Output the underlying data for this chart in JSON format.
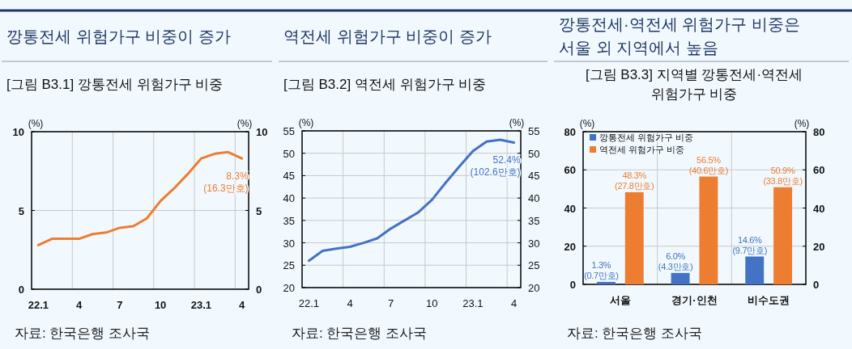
{
  "chart_data": [
    {
      "type": "line",
      "title": "깡통전세 위험가구 비중이 증가",
      "subtitle": "[그림 B3.1] 깡통전세 위험가구 비중",
      "ylabel": "(%)",
      "y2label": "(%)",
      "categories": [
        "22.1",
        null,
        null,
        "4",
        null,
        null,
        "7",
        null,
        null,
        "10",
        null,
        null,
        "23.1",
        null,
        null,
        "4"
      ],
      "series": [
        {
          "color": "#ed7d31",
          "values": [
            2.8,
            3.2,
            3.2,
            3.2,
            3.5,
            3.6,
            3.9,
            4.0,
            4.5,
            5.6,
            6.4,
            7.3,
            8.3,
            8.6,
            8.7,
            8.3
          ],
          "value_labels": [
            null,
            null,
            null,
            null,
            null,
            null,
            null,
            null,
            null,
            null,
            null,
            null,
            null,
            null,
            null,
            "8.3%\n(16.3만호)"
          ]
        }
      ],
      "ylim": [
        0,
        10
      ],
      "yticks": [
        0,
        5,
        10
      ],
      "y2lim": [
        0,
        10
      ],
      "y2ticks": [
        0,
        5,
        10
      ],
      "grid": true,
      "annotations": [
        "자료: 한국은행 조사국"
      ]
    },
    {
      "type": "line",
      "title": "역전세 위험가구 비중이 증가",
      "subtitle": "[그림 B3.2] 역전세 위험가구 비중",
      "ylabel": "(%)",
      "y2label": "(%)",
      "categories": [
        "22.1",
        null,
        null,
        "4",
        null,
        null,
        "7",
        null,
        null,
        "10",
        null,
        null,
        "23.1",
        null,
        null,
        "4"
      ],
      "series": [
        {
          "color": "#4472c4",
          "values": [
            26.0,
            28.2,
            28.7,
            29.1,
            30.0,
            31.0,
            33.2,
            35.0,
            36.8,
            39.6,
            43.4,
            47.0,
            50.5,
            52.6,
            53.0,
            52.4
          ],
          "value_labels": [
            null,
            null,
            null,
            null,
            null,
            null,
            null,
            null,
            null,
            null,
            null,
            null,
            null,
            null,
            null,
            "52.4%\n(102.6만호)"
          ]
        }
      ],
      "ylim": [
        20,
        55
      ],
      "yticks": [
        20,
        25,
        30,
        35,
        40,
        45,
        50,
        55
      ],
      "y2lim": [
        20,
        55
      ],
      "y2ticks": [
        20,
        25,
        30,
        35,
        40,
        45,
        50,
        55
      ],
      "grid": true,
      "annotations": [
        "자료: 한국은행 조사국"
      ]
    },
    {
      "type": "bar",
      "title": "깡통전세·역전세 위험가구 비중은\n서울 외 지역에서 높음",
      "subtitle": "[그림 B3.3] 지역별 깡통전세·역전세\n위험가구 비중",
      "ylabel": "(%)",
      "y2label": "(%)",
      "categories": [
        "서울",
        "경기·인천",
        "비수도권"
      ],
      "series": [
        {
          "name": "깡통전세 위험가구 비중",
          "color": "#4472c4",
          "values": [
            1.3,
            6.0,
            14.6
          ],
          "value_labels": [
            "1.3%\n(0.7만호)",
            "6.0%\n(4.3만호)",
            "14.6%\n(9.7만호)"
          ]
        },
        {
          "name": "역전세 위험가구 비중",
          "color": "#ed7d31",
          "values": [
            48.3,
            56.5,
            50.9
          ],
          "value_labels": [
            "48.3%\n(27.8만호)",
            "56.5%\n(40.6만호)",
            "50.9%\n(33.8만호)"
          ]
        }
      ],
      "ylim": [
        0,
        80
      ],
      "yticks": [
        0,
        20,
        40,
        60,
        80
      ],
      "y2lim": [
        0,
        80
      ],
      "y2ticks": [
        0,
        20,
        40,
        60,
        80
      ],
      "grid": true,
      "legend": "top left",
      "annotations": [
        "자료: 한국은행 조사국"
      ]
    }
  ]
}
